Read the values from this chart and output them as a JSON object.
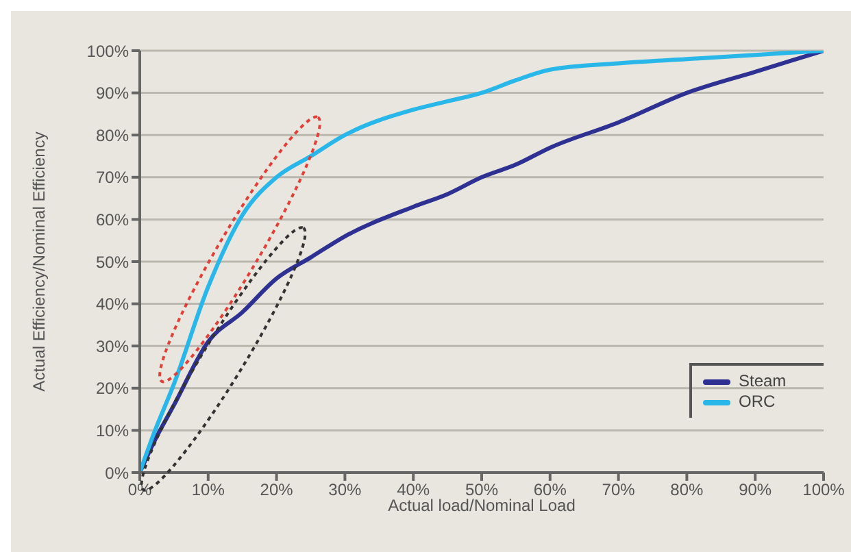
{
  "chart_data": {
    "type": "line",
    "xlabel": "Actual load/Nominal Load",
    "ylabel": "Actual Efficiency/Nominal Efficiency",
    "x": [
      0,
      2,
      5,
      10,
      15,
      20,
      25,
      30,
      40,
      45,
      50,
      55,
      60,
      70,
      80,
      90,
      100
    ],
    "series": [
      {
        "name": "Steam",
        "color": "#2e3192",
        "values": [
          0,
          7,
          16,
          31,
          38,
          46,
          51,
          56,
          63,
          66,
          70,
          73,
          77,
          83,
          90,
          95,
          100
        ]
      },
      {
        "name": "ORC",
        "color": "#29b6e8",
        "values": [
          0,
          9,
          21,
          44,
          61,
          70,
          75,
          80,
          86,
          88,
          90,
          93,
          95.5,
          97,
          98,
          99,
          100
        ]
      }
    ],
    "xlim": [
      0,
      100
    ],
    "ylim": [
      0,
      100
    ],
    "xticks": [
      {
        "value": 0,
        "label": "0%"
      },
      {
        "value": 10,
        "label": "10%"
      },
      {
        "value": 20,
        "label": "20%"
      },
      {
        "value": 30,
        "label": "30%"
      },
      {
        "value": 40,
        "label": "40%"
      },
      {
        "value": 50,
        "label": "50%"
      },
      {
        "value": 60,
        "label": "60%"
      },
      {
        "value": 70,
        "label": "70%"
      },
      {
        "value": 80,
        "label": "80%"
      },
      {
        "value": 90,
        "label": "90%"
      },
      {
        "value": 100,
        "label": "100%"
      }
    ],
    "yticks": [
      {
        "value": 0,
        "label": "0%"
      },
      {
        "value": 10,
        "label": "10%"
      },
      {
        "value": 20,
        "label": "20%"
      },
      {
        "value": 30,
        "label": "30%"
      },
      {
        "value": 40,
        "label": "40%"
      },
      {
        "value": 50,
        "label": "50%"
      },
      {
        "value": 60,
        "label": "60%"
      },
      {
        "value": 70,
        "label": "70%"
      },
      {
        "value": 80,
        "label": "80%"
      },
      {
        "value": 90,
        "label": "90%"
      },
      {
        "value": 100,
        "label": "100%"
      }
    ],
    "grid": "y",
    "legend": "bottom right",
    "marker": "none",
    "line_style": "solid"
  }
}
